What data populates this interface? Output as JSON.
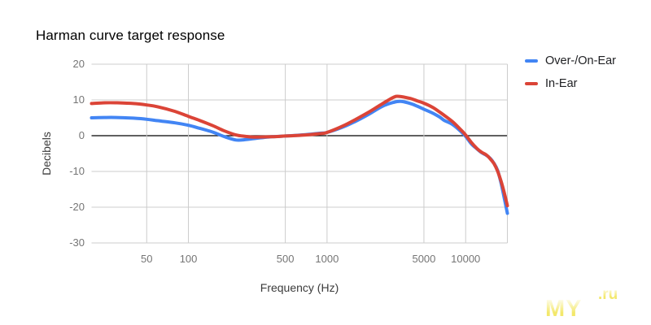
{
  "title": "Harman curve target response",
  "legend": {
    "items": [
      {
        "label": "Over-/On-Ear",
        "color": "#4285f4"
      },
      {
        "label": "In-Ear",
        "color": "#db4437"
      }
    ]
  },
  "watermark": {
    "my": "MY",
    "ru": ".ru",
    "color": "#f3e764"
  },
  "chart_data": {
    "type": "line",
    "title": "Harman curve target response",
    "xlabel": "Frequency (Hz)",
    "ylabel": "Decibels",
    "x_scale": "log",
    "xlim": [
      20,
      20000
    ],
    "ylim": [
      -30,
      20
    ],
    "y_ticks": [
      20,
      10,
      0,
      -10,
      -20,
      -30
    ],
    "x_ticks": [
      50,
      100,
      500,
      1000,
      5000,
      10000
    ],
    "x_gridlines": [
      50,
      100,
      500,
      1000,
      5000,
      10000,
      20000
    ],
    "grid_color": "#cccccc",
    "zero_line_color": "#000000",
    "legend_position": "right",
    "series": [
      {
        "name": "Over-/On-Ear",
        "color": "#4285f4",
        "points": [
          [
            20,
            5.0
          ],
          [
            25,
            5.1
          ],
          [
            30,
            5.1
          ],
          [
            40,
            4.9
          ],
          [
            50,
            4.6
          ],
          [
            60,
            4.2
          ],
          [
            80,
            3.6
          ],
          [
            100,
            2.9
          ],
          [
            120,
            2.1
          ],
          [
            150,
            1.0
          ],
          [
            180,
            -0.2
          ],
          [
            220,
            -1.2
          ],
          [
            260,
            -1.1
          ],
          [
            300,
            -0.8
          ],
          [
            400,
            -0.3
          ],
          [
            500,
            -0.1
          ],
          [
            700,
            0.3
          ],
          [
            900,
            0.7
          ],
          [
            1000,
            0.9
          ],
          [
            1300,
            2.4
          ],
          [
            1600,
            4.0
          ],
          [
            2000,
            6.0
          ],
          [
            2500,
            8.2
          ],
          [
            3000,
            9.3
          ],
          [
            3400,
            9.6
          ],
          [
            4000,
            9.0
          ],
          [
            4500,
            8.2
          ],
          [
            5000,
            7.4
          ],
          [
            5800,
            6.3
          ],
          [
            6500,
            5.2
          ],
          [
            7000,
            4.3
          ],
          [
            8000,
            3.2
          ],
          [
            9000,
            1.6
          ],
          [
            10000,
            -0.2
          ],
          [
            11000,
            -2.3
          ],
          [
            12000,
            -3.6
          ],
          [
            13000,
            -4.7
          ],
          [
            14000,
            -5.4
          ],
          [
            15000,
            -6.3
          ],
          [
            16000,
            -7.7
          ],
          [
            17000,
            -9.7
          ],
          [
            18000,
            -13.2
          ],
          [
            19000,
            -17.5
          ],
          [
            20000,
            -21.7
          ]
        ]
      },
      {
        "name": "In-Ear",
        "color": "#db4437",
        "points": [
          [
            20,
            9.0
          ],
          [
            25,
            9.2
          ],
          [
            30,
            9.2
          ],
          [
            40,
            9.0
          ],
          [
            50,
            8.6
          ],
          [
            60,
            8.1
          ],
          [
            80,
            6.8
          ],
          [
            100,
            5.4
          ],
          [
            120,
            4.3
          ],
          [
            150,
            2.8
          ],
          [
            180,
            1.4
          ],
          [
            220,
            0.2
          ],
          [
            260,
            -0.2
          ],
          [
            300,
            -0.4
          ],
          [
            400,
            -0.3
          ],
          [
            500,
            -0.1
          ],
          [
            700,
            0.2
          ],
          [
            900,
            0.6
          ],
          [
            1000,
            0.9
          ],
          [
            1300,
            2.7
          ],
          [
            1600,
            4.5
          ],
          [
            2000,
            6.6
          ],
          [
            2500,
            8.9
          ],
          [
            3000,
            10.7
          ],
          [
            3300,
            11.0
          ],
          [
            4000,
            10.4
          ],
          [
            4500,
            9.7
          ],
          [
            5000,
            9.1
          ],
          [
            5800,
            7.9
          ],
          [
            6500,
            6.6
          ],
          [
            7000,
            5.7
          ],
          [
            8000,
            4.0
          ],
          [
            9000,
            2.1
          ],
          [
            10000,
            0.2
          ],
          [
            11000,
            -1.9
          ],
          [
            12000,
            -3.5
          ],
          [
            13000,
            -4.6
          ],
          [
            14000,
            -5.3
          ],
          [
            15000,
            -6.4
          ],
          [
            16000,
            -7.8
          ],
          [
            17000,
            -9.9
          ],
          [
            18000,
            -12.7
          ],
          [
            19000,
            -16.0
          ],
          [
            20000,
            -19.6
          ]
        ]
      }
    ]
  }
}
